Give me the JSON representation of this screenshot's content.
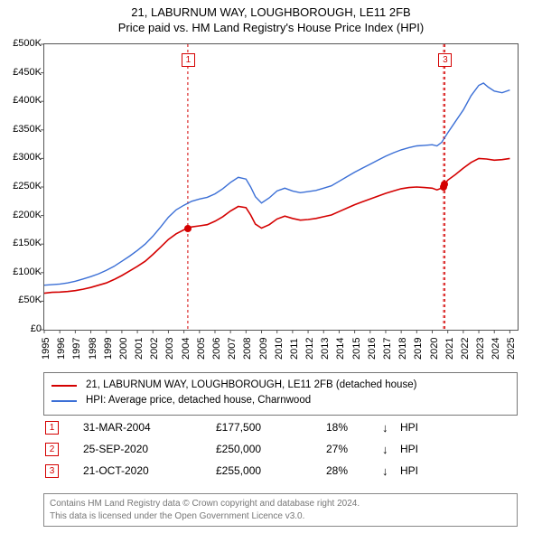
{
  "title": {
    "line1": "21, LABURNUM WAY, LOUGHBOROUGH, LE11 2FB",
    "line2": "Price paid vs. HM Land Registry's House Price Index (HPI)"
  },
  "chart": {
    "type": "line",
    "background_color": "#ffffff",
    "axis_color": "#555555",
    "x_start": 1995,
    "x_end": 2025.5,
    "xticks": [
      1995,
      1996,
      1997,
      1998,
      1999,
      2000,
      2001,
      2002,
      2003,
      2004,
      2005,
      2006,
      2007,
      2008,
      2009,
      2010,
      2011,
      2012,
      2013,
      2014,
      2015,
      2016,
      2017,
      2018,
      2019,
      2020,
      2021,
      2022,
      2023,
      2024,
      2025
    ],
    "ylim": [
      0,
      500000
    ],
    "yticks": [
      {
        "v": 0,
        "label": "£0"
      },
      {
        "v": 50000,
        "label": "£50K"
      },
      {
        "v": 100000,
        "label": "£100K"
      },
      {
        "v": 150000,
        "label": "£150K"
      },
      {
        "v": 200000,
        "label": "£200K"
      },
      {
        "v": 250000,
        "label": "£250K"
      },
      {
        "v": 300000,
        "label": "£300K"
      },
      {
        "v": 350000,
        "label": "£350K"
      },
      {
        "v": 400000,
        "label": "£400K"
      },
      {
        "v": 450000,
        "label": "£450K"
      },
      {
        "v": 500000,
        "label": "£500K"
      }
    ],
    "tick_label_fontsize": 11,
    "series": [
      {
        "id": "price_paid",
        "label": "21, LABURNUM WAY, LOUGHBOROUGH, LE11 2FB (detached house)",
        "color": "#d40000",
        "line_width": 1.6,
        "data": [
          [
            1995.0,
            64000
          ],
          [
            1995.5,
            65500
          ],
          [
            1996.0,
            66000
          ],
          [
            1996.5,
            67000
          ],
          [
            1997.0,
            68500
          ],
          [
            1997.5,
            71000
          ],
          [
            1998.0,
            74000
          ],
          [
            1998.5,
            78000
          ],
          [
            1999.0,
            82000
          ],
          [
            1999.5,
            88000
          ],
          [
            2000.0,
            95000
          ],
          [
            2000.5,
            103000
          ],
          [
            2001.0,
            111000
          ],
          [
            2001.5,
            120000
          ],
          [
            2002.0,
            132000
          ],
          [
            2002.5,
            145000
          ],
          [
            2003.0,
            158000
          ],
          [
            2003.5,
            168000
          ],
          [
            2004.0,
            175000
          ],
          [
            2004.25,
            177500
          ],
          [
            2004.5,
            180000
          ],
          [
            2005.0,
            182000
          ],
          [
            2005.5,
            184000
          ],
          [
            2006.0,
            190000
          ],
          [
            2006.5,
            198000
          ],
          [
            2007.0,
            208000
          ],
          [
            2007.5,
            216000
          ],
          [
            2008.0,
            214000
          ],
          [
            2008.3,
            201000
          ],
          [
            2008.6,
            185000
          ],
          [
            2009.0,
            178000
          ],
          [
            2009.5,
            184000
          ],
          [
            2010.0,
            194000
          ],
          [
            2010.5,
            199000
          ],
          [
            2011.0,
            195000
          ],
          [
            2011.5,
            192000
          ],
          [
            2012.0,
            193000
          ],
          [
            2012.5,
            195000
          ],
          [
            2013.0,
            198000
          ],
          [
            2013.5,
            201000
          ],
          [
            2014.0,
            207000
          ],
          [
            2014.5,
            213000
          ],
          [
            2015.0,
            219000
          ],
          [
            2015.5,
            224000
          ],
          [
            2016.0,
            229000
          ],
          [
            2016.5,
            234000
          ],
          [
            2017.0,
            239000
          ],
          [
            2017.5,
            243000
          ],
          [
            2018.0,
            247000
          ],
          [
            2018.5,
            249000
          ],
          [
            2019.0,
            250000
          ],
          [
            2019.5,
            249000
          ],
          [
            2020.0,
            248000
          ],
          [
            2020.3,
            245000
          ],
          [
            2020.6,
            248000
          ],
          [
            2020.73,
            250000
          ],
          [
            2020.81,
            255000
          ],
          [
            2021.0,
            262000
          ],
          [
            2021.5,
            272000
          ],
          [
            2022.0,
            283000
          ],
          [
            2022.5,
            293000
          ],
          [
            2023.0,
            300000
          ],
          [
            2023.5,
            299000
          ],
          [
            2024.0,
            297000
          ],
          [
            2024.5,
            298000
          ],
          [
            2025.0,
            300000
          ]
        ]
      },
      {
        "id": "hpi",
        "label": "HPI: Average price, detached house, Charnwood",
        "color": "#3b6fd6",
        "line_width": 1.4,
        "data": [
          [
            1995.0,
            78000
          ],
          [
            1995.5,
            79000
          ],
          [
            1996.0,
            80000
          ],
          [
            1996.5,
            82000
          ],
          [
            1997.0,
            85000
          ],
          [
            1997.5,
            89000
          ],
          [
            1998.0,
            93000
          ],
          [
            1998.5,
            98000
          ],
          [
            1999.0,
            104000
          ],
          [
            1999.5,
            111000
          ],
          [
            2000.0,
            120000
          ],
          [
            2000.5,
            129000
          ],
          [
            2001.0,
            139000
          ],
          [
            2001.5,
            150000
          ],
          [
            2002.0,
            164000
          ],
          [
            2002.5,
            180000
          ],
          [
            2003.0,
            197000
          ],
          [
            2003.5,
            210000
          ],
          [
            2004.0,
            218000
          ],
          [
            2004.5,
            225000
          ],
          [
            2005.0,
            229000
          ],
          [
            2005.5,
            232000
          ],
          [
            2006.0,
            238000
          ],
          [
            2006.5,
            247000
          ],
          [
            2007.0,
            258000
          ],
          [
            2007.5,
            267000
          ],
          [
            2008.0,
            264000
          ],
          [
            2008.3,
            250000
          ],
          [
            2008.6,
            233000
          ],
          [
            2009.0,
            222000
          ],
          [
            2009.5,
            231000
          ],
          [
            2010.0,
            243000
          ],
          [
            2010.5,
            248000
          ],
          [
            2011.0,
            243000
          ],
          [
            2011.5,
            240000
          ],
          [
            2012.0,
            242000
          ],
          [
            2012.5,
            244000
          ],
          [
            2013.0,
            248000
          ],
          [
            2013.5,
            252000
          ],
          [
            2014.0,
            260000
          ],
          [
            2014.5,
            268000
          ],
          [
            2015.0,
            276000
          ],
          [
            2015.5,
            283000
          ],
          [
            2016.0,
            290000
          ],
          [
            2016.5,
            297000
          ],
          [
            2017.0,
            304000
          ],
          [
            2017.5,
            310000
          ],
          [
            2018.0,
            315000
          ],
          [
            2018.5,
            319000
          ],
          [
            2019.0,
            322000
          ],
          [
            2019.5,
            323000
          ],
          [
            2020.0,
            324000
          ],
          [
            2020.3,
            322000
          ],
          [
            2020.6,
            328000
          ],
          [
            2021.0,
            345000
          ],
          [
            2021.5,
            365000
          ],
          [
            2022.0,
            385000
          ],
          [
            2022.5,
            410000
          ],
          [
            2023.0,
            428000
          ],
          [
            2023.3,
            432000
          ],
          [
            2023.6,
            425000
          ],
          [
            2024.0,
            418000
          ],
          [
            2024.5,
            415000
          ],
          [
            2025.0,
            420000
          ]
        ]
      }
    ],
    "event_lines": [
      {
        "x": 2004.25,
        "color": "#d40000",
        "marker_label": "1",
        "marker_y_px": 10
      },
      {
        "x": 2020.73,
        "color": "#d40000",
        "marker_label": null
      },
      {
        "x": 2020.81,
        "color": "#d40000",
        "marker_label": "3",
        "marker_y_px": 10
      }
    ],
    "data_points": [
      {
        "x": 2004.25,
        "y": 177500,
        "color": "#d40000"
      },
      {
        "x": 2020.73,
        "y": 250000,
        "color": "#d40000"
      },
      {
        "x": 2020.81,
        "y": 255000,
        "color": "#d40000"
      }
    ]
  },
  "legend": {
    "border_color": "#777777",
    "items": [
      {
        "color": "#d40000",
        "label": "21, LABURNUM WAY, LOUGHBOROUGH, LE11 2FB (detached house)"
      },
      {
        "color": "#3b6fd6",
        "label": "HPI: Average price, detached house, Charnwood"
      }
    ]
  },
  "transaction_table": {
    "rows": [
      {
        "n": "1",
        "box_color": "#d40000",
        "date": "31-MAR-2004",
        "price": "£177,500",
        "pct": "18%",
        "arrow": "↓",
        "suffix": "HPI"
      },
      {
        "n": "2",
        "box_color": "#d40000",
        "date": "25-SEP-2020",
        "price": "£250,000",
        "pct": "27%",
        "arrow": "↓",
        "suffix": "HPI"
      },
      {
        "n": "3",
        "box_color": "#d40000",
        "date": "21-OCT-2020",
        "price": "£255,000",
        "pct": "28%",
        "arrow": "↓",
        "suffix": "HPI"
      }
    ]
  },
  "footnote": {
    "line1": "Contains HM Land Registry data © Crown copyright and database right 2024.",
    "line2": "This data is licensed under the Open Government Licence v3.0."
  }
}
